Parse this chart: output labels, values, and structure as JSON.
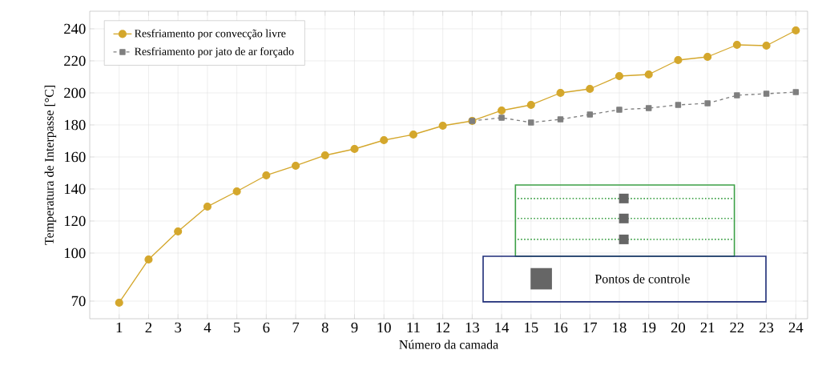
{
  "chart_data": {
    "type": "line",
    "xlabel": "Número da camada",
    "ylabel": "Temperatura de Interpasse [°C]",
    "x": [
      1,
      2,
      3,
      4,
      5,
      6,
      7,
      8,
      9,
      10,
      11,
      12,
      13,
      14,
      15,
      16,
      17,
      18,
      19,
      20,
      21,
      22,
      23,
      24
    ],
    "series": [
      {
        "name": "Resfriamento por convecção livre",
        "color": "#d4a72c",
        "marker": "circle",
        "line_style": "solid",
        "values": [
          69,
          96,
          113.5,
          129,
          138.5,
          148.5,
          154.5,
          161,
          165,
          170.5,
          174,
          179.5,
          182.5,
          189,
          192.5,
          200,
          202.5,
          210.5,
          211.5,
          220.5,
          222.5,
          230,
          229.5,
          239
        ]
      },
      {
        "name": "Resfriamento por jato de ar forçado",
        "color": "#7f7f7f",
        "marker": "square",
        "line_style": "dashed",
        "values": [
          null,
          null,
          null,
          null,
          null,
          null,
          null,
          null,
          null,
          null,
          null,
          null,
          182.5,
          184.5,
          181.5,
          183.5,
          186.5,
          189.5,
          190.5,
          192.5,
          193.5,
          198.5,
          199.5,
          200.5
        ]
      }
    ],
    "xlim": [
      0,
      24.4
    ],
    "ylim": [
      59,
      251
    ],
    "xticks": [
      1,
      2,
      3,
      4,
      5,
      6,
      7,
      8,
      9,
      10,
      11,
      12,
      13,
      14,
      15,
      16,
      17,
      18,
      19,
      20,
      21,
      22,
      23,
      24
    ],
    "yticks": [
      70,
      100,
      120,
      140,
      160,
      180,
      200,
      220,
      240
    ],
    "grid": true,
    "legend": "top left",
    "annotations": [
      "Pontos de controle"
    ]
  }
}
